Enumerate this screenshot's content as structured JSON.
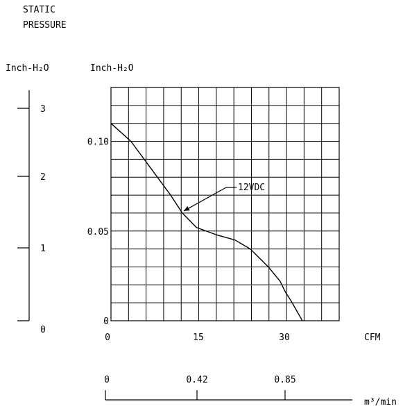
{
  "chart_data": {
    "type": "line",
    "title_lines": [
      "STATIC",
      "PRESSURE"
    ],
    "left_axis": {
      "label": "Inch-H₂O",
      "ticks": [
        "3",
        "2",
        "1",
        "0"
      ]
    },
    "y_axis": {
      "label": "Inch-H₂O",
      "ticks": [
        "0.10",
        "0.05",
        "0"
      ],
      "ylim": [
        0,
        0.13
      ]
    },
    "x_axis": {
      "label": "CFM",
      "ticks": [
        "0",
        "15",
        "30"
      ],
      "xlim": [
        0,
        39
      ]
    },
    "x2_axis": {
      "label": "m³/min",
      "ticks": [
        "0",
        "0.42",
        "0.85"
      ]
    },
    "grid": true,
    "series": [
      {
        "name": "12VDC",
        "x": [
          0,
          3.4,
          6.8,
          10.2,
          12.2,
          14.6,
          17.9,
          21.2,
          23.8,
          26.9,
          28.9,
          29.8,
          30.8,
          32.7
        ],
        "y": [
          0.11,
          0.1,
          0.085,
          0.07,
          0.06,
          0.052,
          0.048,
          0.045,
          0.04,
          0.03,
          0.022,
          0.016,
          0.011,
          0
        ]
      }
    ],
    "annotations": [
      {
        "text": "12VDC",
        "points_to_x": 12.2,
        "points_to_y": 0.06
      }
    ],
    "color": "#000000"
  }
}
